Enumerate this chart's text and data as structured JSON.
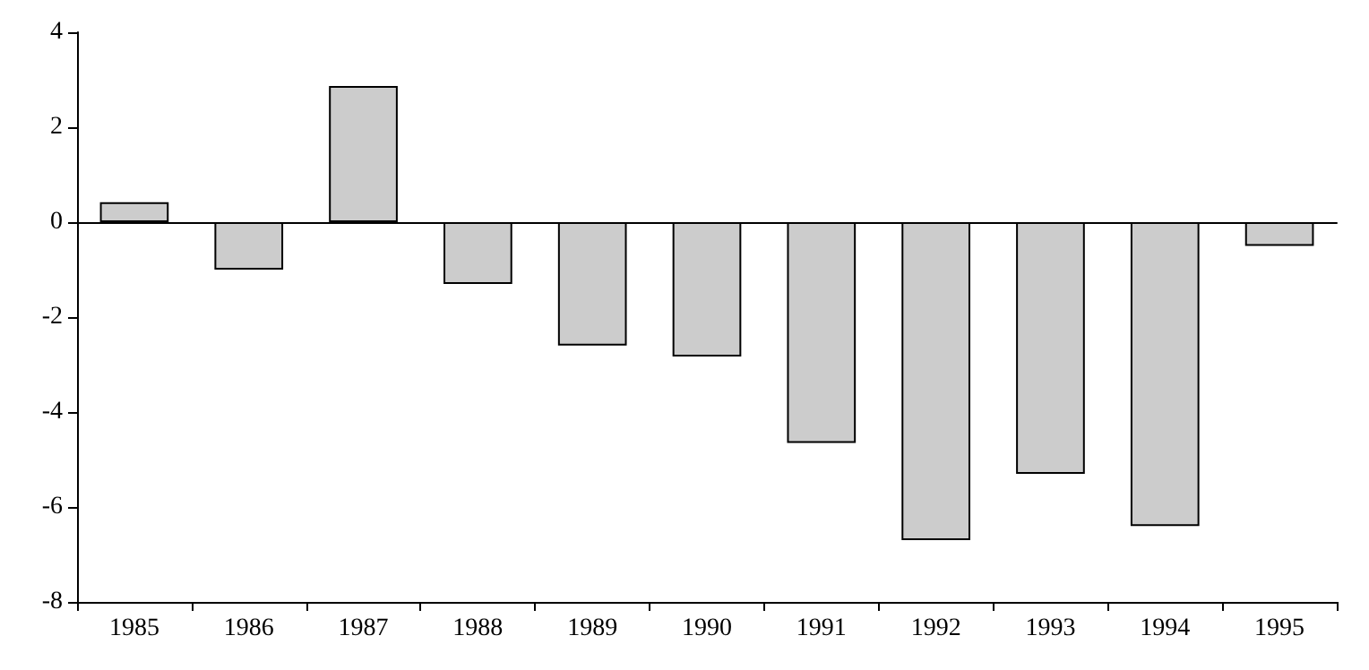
{
  "chart_data": {
    "type": "bar",
    "categories": [
      "1985",
      "1986",
      "1987",
      "1988",
      "1989",
      "1990",
      "1991",
      "1992",
      "1993",
      "1994",
      "1995"
    ],
    "values": [
      0.42,
      -1.0,
      2.87,
      -1.3,
      -2.6,
      -2.83,
      -4.65,
      -6.7,
      -5.3,
      -6.4,
      -0.5
    ],
    "color": "#cccccc",
    "ylim": [
      -8,
      4
    ],
    "yticks": [
      -8,
      -6,
      -4,
      -2,
      0,
      2,
      4
    ]
  }
}
